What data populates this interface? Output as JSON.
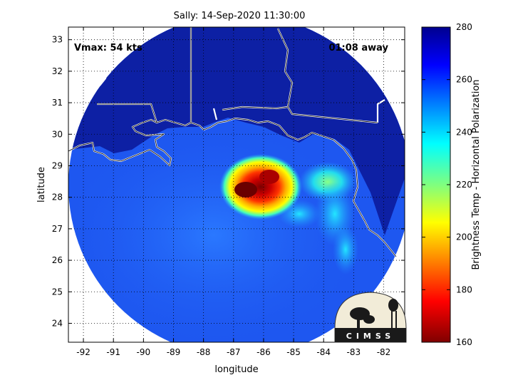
{
  "title": "Sally: 14-Sep-2020 11:30:00",
  "vmax": "Vmax: 54 kts",
  "time_away": "01:08 away",
  "x_axis": {
    "label": "longitude",
    "ticks": [
      -92,
      -91,
      -90,
      -89,
      -88,
      -87,
      -86,
      -85,
      -84,
      -83,
      -82
    ],
    "range": [
      -92.5,
      -81.3
    ]
  },
  "y_axis": {
    "label": "latitude",
    "ticks": [
      24,
      25,
      26,
      27,
      28,
      29,
      30,
      31,
      32,
      33
    ],
    "range": [
      23.4,
      33.4
    ]
  },
  "colorbar": {
    "label": "Brightness Temp - Horizontal Polarization",
    "ticks": [
      160,
      180,
      200,
      220,
      240,
      260,
      280
    ],
    "range": [
      160,
      280
    ],
    "colormap": "jet-reversed"
  },
  "logo_text": "CIMSS",
  "storm_center": {
    "lon": -86.3,
    "lat": 28.4,
    "min_temp": 165
  },
  "colors": {
    "background_cold": "#0a1fa0",
    "land": "#0f24a8",
    "ocean": "#1e57f0",
    "coastline": "#ffffff"
  }
}
